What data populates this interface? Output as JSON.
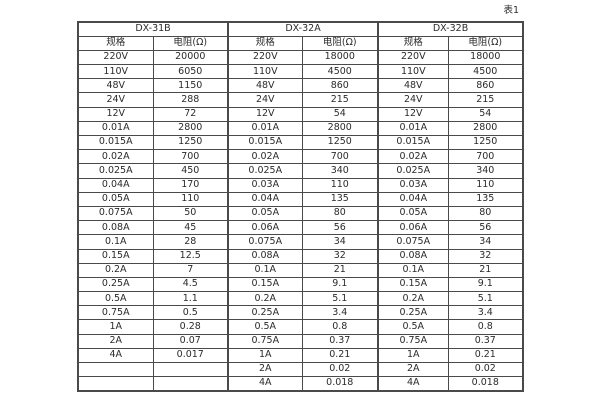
{
  "page": {
    "table_label": "表1"
  },
  "table": {
    "groups": [
      {
        "name": "DX-31B",
        "col_headers": [
          "规格",
          "电阻(Ω)"
        ],
        "rows": [
          [
            "220V",
            "20000"
          ],
          [
            "110V",
            "6050"
          ],
          [
            "48V",
            "1150"
          ],
          [
            "24V",
            "288"
          ],
          [
            "12V",
            "72"
          ],
          [
            "0.01A",
            "2800"
          ],
          [
            "0.015A",
            "1250"
          ],
          [
            "0.02A",
            "700"
          ],
          [
            "0.025A",
            "450"
          ],
          [
            "0.04A",
            "170"
          ],
          [
            "0.05A",
            "110"
          ],
          [
            "0.075A",
            "50"
          ],
          [
            "0.08A",
            "45"
          ],
          [
            "0.1A",
            "28"
          ],
          [
            "0.15A",
            "12.5"
          ],
          [
            "0.2A",
            "7"
          ],
          [
            "0.25A",
            "4.5"
          ],
          [
            "0.5A",
            "1.1"
          ],
          [
            "0.75A",
            "0.5"
          ],
          [
            "1A",
            "0.28"
          ],
          [
            "2A",
            "0.07"
          ],
          [
            "4A",
            "0.017"
          ],
          [
            "",
            ""
          ],
          [
            "",
            ""
          ]
        ]
      },
      {
        "name": "DX-32A",
        "col_headers": [
          "规格",
          "电阻(Ω)"
        ],
        "rows": [
          [
            "220V",
            "18000"
          ],
          [
            "110V",
            "4500"
          ],
          [
            "48V",
            "860"
          ],
          [
            "24V",
            "215"
          ],
          [
            "12V",
            "54"
          ],
          [
            "0.01A",
            "2800"
          ],
          [
            "0.015A",
            "1250"
          ],
          [
            "0.02A",
            "700"
          ],
          [
            "0.025A",
            "340"
          ],
          [
            "0.03A",
            "110"
          ],
          [
            "0.04A",
            "135"
          ],
          [
            "0.05A",
            "80"
          ],
          [
            "0.06A",
            "56"
          ],
          [
            "0.075A",
            "34"
          ],
          [
            "0.08A",
            "32"
          ],
          [
            "0.1A",
            "21"
          ],
          [
            "0.15A",
            "9.1"
          ],
          [
            "0.2A",
            "5.1"
          ],
          [
            "0.25A",
            "3.4"
          ],
          [
            "0.5A",
            "0.8"
          ],
          [
            "0.75A",
            "0.37"
          ],
          [
            "1A",
            "0.21"
          ],
          [
            "2A",
            "0.02"
          ],
          [
            "4A",
            "0.018"
          ]
        ]
      },
      {
        "name": "DX-32B",
        "col_headers": [
          "规格",
          "电阻(Ω)"
        ],
        "rows": [
          [
            "220V",
            "18000"
          ],
          [
            "110V",
            "4500"
          ],
          [
            "48V",
            "860"
          ],
          [
            "24V",
            "215"
          ],
          [
            "12V",
            "54"
          ],
          [
            "0.01A",
            "2800"
          ],
          [
            "0.015A",
            "1250"
          ],
          [
            "0.02A",
            "700"
          ],
          [
            "0.025A",
            "340"
          ],
          [
            "0.03A",
            "110"
          ],
          [
            "0.04A",
            "135"
          ],
          [
            "0.05A",
            "80"
          ],
          [
            "0.06A",
            "56"
          ],
          [
            "0.075A",
            "34"
          ],
          [
            "0.08A",
            "32"
          ],
          [
            "0.1A",
            "21"
          ],
          [
            "0.15A",
            "9.1"
          ],
          [
            "0.2A",
            "5.1"
          ],
          [
            "0.25A",
            "3.4"
          ],
          [
            "0.5A",
            "0.8"
          ],
          [
            "0.75A",
            "0.37"
          ],
          [
            "1A",
            "0.21"
          ],
          [
            "2A",
            "0.02"
          ],
          [
            "4A",
            "0.018"
          ]
        ]
      }
    ]
  }
}
